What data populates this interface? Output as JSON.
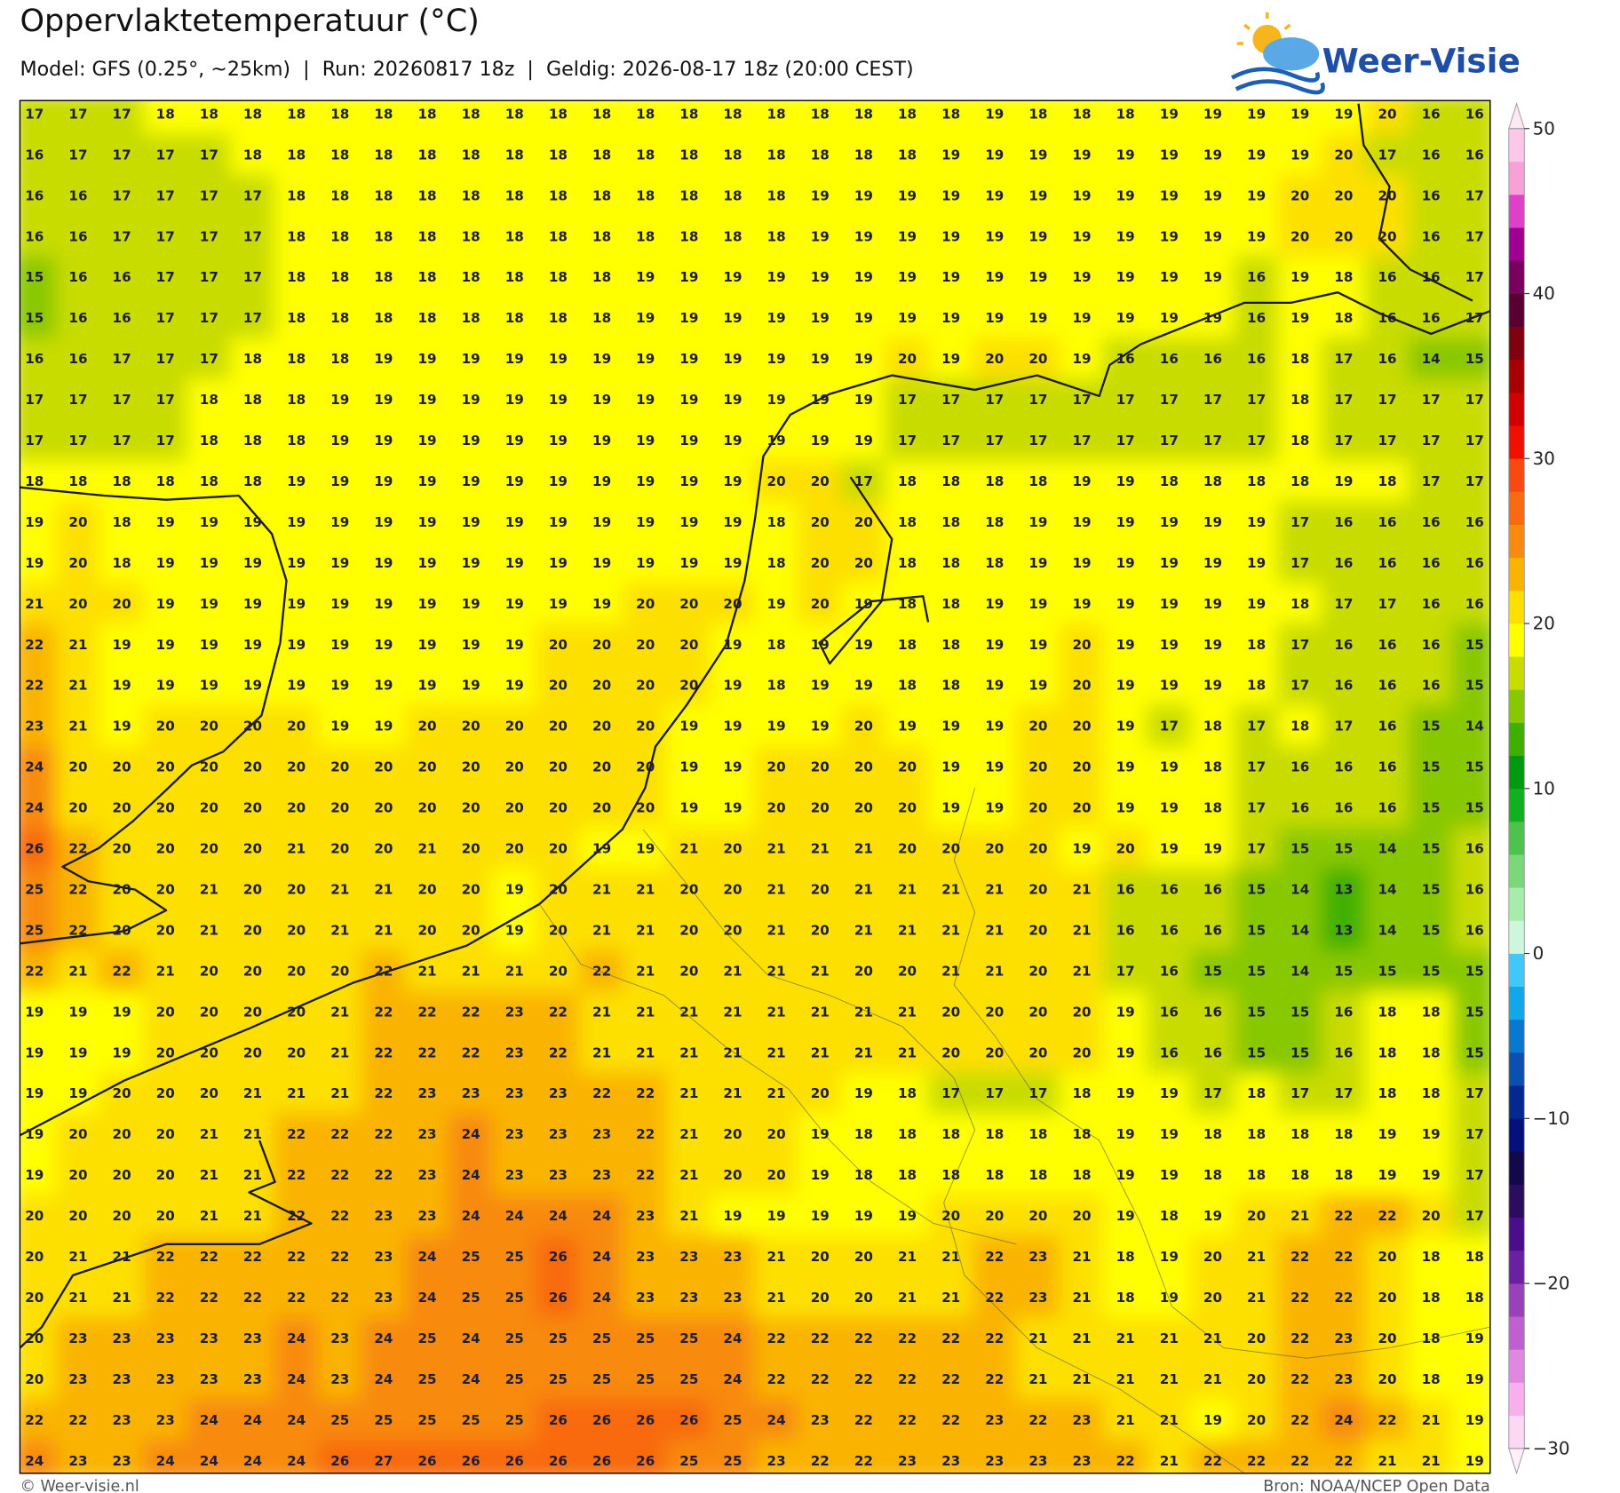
{
  "header": {
    "title": "Oppervlaktetemperatuur (°C)",
    "subtitle": "Model: GFS (0.25°, ~25km)  |  Run: 20260817 18z  |  Geldig: 2026-08-17 18z (20:00 CEST)"
  },
  "logo": "Weer-Visie",
  "grid": {
    "rows": [
      [
        17,
        17,
        17,
        18,
        18,
        18,
        18,
        18,
        18,
        18,
        18,
        18,
        18,
        18,
        18,
        18,
        18,
        18,
        18,
        18,
        18,
        18,
        19,
        18,
        18,
        18,
        19,
        19,
        19,
        19,
        19,
        20,
        16,
        16
      ],
      [
        16,
        17,
        17,
        17,
        17,
        18,
        18,
        18,
        18,
        18,
        18,
        18,
        18,
        18,
        18,
        18,
        18,
        18,
        18,
        18,
        18,
        19,
        19,
        19,
        19,
        19,
        19,
        19,
        19,
        19,
        20,
        17,
        16,
        16
      ],
      [
        16,
        16,
        17,
        17,
        17,
        17,
        18,
        18,
        18,
        18,
        18,
        18,
        18,
        18,
        18,
        18,
        18,
        18,
        19,
        19,
        19,
        19,
        19,
        19,
        19,
        19,
        19,
        19,
        19,
        20,
        20,
        20,
        16,
        17
      ],
      [
        16,
        16,
        17,
        17,
        17,
        17,
        18,
        18,
        18,
        18,
        18,
        18,
        18,
        18,
        18,
        18,
        18,
        18,
        19,
        19,
        19,
        19,
        19,
        19,
        19,
        19,
        19,
        19,
        19,
        20,
        20,
        20,
        16,
        17
      ],
      [
        15,
        16,
        16,
        17,
        17,
        17,
        18,
        18,
        18,
        18,
        18,
        18,
        18,
        18,
        19,
        19,
        19,
        19,
        19,
        19,
        19,
        19,
        19,
        19,
        19,
        19,
        19,
        19,
        16,
        19,
        18,
        16,
        16,
        17
      ],
      [
        15,
        16,
        16,
        17,
        17,
        17,
        18,
        18,
        18,
        18,
        18,
        18,
        18,
        18,
        19,
        19,
        19,
        19,
        19,
        19,
        19,
        19,
        19,
        19,
        19,
        19,
        19,
        19,
        16,
        19,
        18,
        16,
        16,
        17
      ],
      [
        16,
        16,
        17,
        17,
        17,
        18,
        18,
        18,
        19,
        19,
        19,
        19,
        19,
        19,
        19,
        19,
        19,
        19,
        19,
        19,
        20,
        19,
        20,
        20,
        19,
        16,
        16,
        16,
        16,
        18,
        17,
        16,
        14,
        15
      ],
      [
        17,
        17,
        17,
        17,
        18,
        18,
        18,
        19,
        19,
        19,
        19,
        19,
        19,
        19,
        19,
        19,
        19,
        19,
        19,
        19,
        17,
        17,
        17,
        17,
        17,
        17,
        17,
        17,
        17,
        18,
        17,
        17,
        17,
        17
      ],
      [
        17,
        17,
        17,
        17,
        18,
        18,
        18,
        19,
        19,
        19,
        19,
        19,
        19,
        19,
        19,
        19,
        19,
        19,
        19,
        19,
        17,
        17,
        17,
        17,
        17,
        17,
        17,
        17,
        17,
        18,
        17,
        17,
        17,
        17
      ],
      [
        18,
        18,
        18,
        18,
        18,
        18,
        19,
        19,
        19,
        19,
        19,
        19,
        19,
        19,
        19,
        19,
        19,
        20,
        20,
        17,
        18,
        18,
        18,
        18,
        19,
        19,
        18,
        18,
        18,
        18,
        19,
        18,
        17,
        17
      ],
      [
        19,
        20,
        18,
        19,
        19,
        19,
        19,
        19,
        19,
        19,
        19,
        19,
        19,
        19,
        19,
        19,
        19,
        18,
        20,
        20,
        18,
        18,
        18,
        19,
        19,
        19,
        19,
        19,
        19,
        17,
        16,
        16,
        16,
        16
      ],
      [
        19,
        20,
        18,
        19,
        19,
        19,
        19,
        19,
        19,
        19,
        19,
        19,
        19,
        19,
        19,
        19,
        19,
        18,
        20,
        20,
        18,
        18,
        18,
        19,
        19,
        19,
        19,
        19,
        19,
        17,
        16,
        16,
        16,
        16
      ],
      [
        21,
        20,
        20,
        19,
        19,
        19,
        19,
        19,
        19,
        19,
        19,
        19,
        19,
        19,
        20,
        20,
        20,
        19,
        20,
        19,
        18,
        18,
        19,
        19,
        19,
        19,
        19,
        19,
        19,
        18,
        17,
        17,
        16,
        16
      ],
      [
        22,
        21,
        19,
        19,
        19,
        19,
        19,
        19,
        19,
        19,
        19,
        19,
        20,
        20,
        20,
        20,
        19,
        18,
        19,
        19,
        18,
        18,
        19,
        19,
        20,
        19,
        19,
        19,
        18,
        17,
        16,
        16,
        16,
        15
      ],
      [
        22,
        21,
        19,
        19,
        19,
        19,
        19,
        19,
        19,
        19,
        19,
        19,
        20,
        20,
        20,
        20,
        19,
        18,
        19,
        19,
        18,
        18,
        19,
        19,
        20,
        19,
        19,
        19,
        18,
        17,
        16,
        16,
        16,
        15
      ],
      [
        23,
        21,
        19,
        20,
        20,
        20,
        20,
        19,
        19,
        20,
        20,
        20,
        20,
        20,
        20,
        19,
        19,
        19,
        19,
        20,
        19,
        19,
        19,
        20,
        20,
        19,
        17,
        18,
        17,
        18,
        17,
        16,
        15,
        14
      ],
      [
        24,
        20,
        20,
        20,
        20,
        20,
        20,
        20,
        20,
        20,
        20,
        20,
        20,
        20,
        20,
        19,
        19,
        20,
        20,
        20,
        20,
        19,
        19,
        20,
        20,
        19,
        19,
        18,
        17,
        16,
        16,
        16,
        15,
        15
      ],
      [
        24,
        20,
        20,
        20,
        20,
        20,
        20,
        20,
        20,
        20,
        20,
        20,
        20,
        20,
        20,
        19,
        19,
        20,
        20,
        20,
        20,
        19,
        19,
        20,
        20,
        19,
        19,
        18,
        17,
        16,
        16,
        16,
        15,
        15
      ],
      [
        26,
        22,
        20,
        20,
        20,
        20,
        21,
        20,
        20,
        21,
        20,
        20,
        20,
        19,
        19,
        21,
        20,
        21,
        21,
        21,
        20,
        20,
        20,
        20,
        19,
        20,
        19,
        19,
        17,
        15,
        15,
        14,
        15,
        16
      ],
      [
        25,
        22,
        20,
        20,
        21,
        20,
        20,
        21,
        21,
        20,
        20,
        19,
        20,
        21,
        21,
        20,
        20,
        21,
        20,
        21,
        21,
        21,
        21,
        20,
        21,
        16,
        16,
        16,
        15,
        14,
        13,
        14,
        15,
        16
      ],
      [
        25,
        22,
        20,
        20,
        21,
        20,
        20,
        21,
        21,
        20,
        20,
        19,
        20,
        21,
        21,
        20,
        20,
        21,
        20,
        21,
        21,
        21,
        21,
        20,
        21,
        16,
        16,
        16,
        15,
        14,
        13,
        14,
        15,
        16
      ],
      [
        22,
        21,
        22,
        21,
        20,
        20,
        20,
        20,
        22,
        21,
        21,
        21,
        20,
        22,
        21,
        20,
        21,
        21,
        21,
        20,
        20,
        21,
        21,
        20,
        21,
        17,
        16,
        15,
        15,
        14,
        15,
        15,
        15,
        15
      ],
      [
        19,
        19,
        19,
        20,
        20,
        20,
        20,
        21,
        22,
        22,
        22,
        23,
        22,
        21,
        21,
        21,
        21,
        21,
        21,
        21,
        21,
        20,
        20,
        20,
        20,
        19,
        16,
        16,
        15,
        15,
        16,
        18,
        18,
        15
      ],
      [
        19,
        19,
        19,
        20,
        20,
        20,
        20,
        21,
        22,
        22,
        22,
        23,
        22,
        21,
        21,
        21,
        21,
        21,
        21,
        21,
        21,
        20,
        20,
        20,
        20,
        19,
        16,
        16,
        15,
        15,
        16,
        18,
        18,
        15
      ],
      [
        19,
        19,
        20,
        20,
        20,
        21,
        21,
        21,
        22,
        23,
        23,
        23,
        23,
        22,
        22,
        21,
        21,
        21,
        20,
        19,
        18,
        17,
        17,
        17,
        18,
        19,
        19,
        17,
        18,
        17,
        17,
        18,
        18,
        17
      ],
      [
        19,
        20,
        20,
        20,
        21,
        21,
        22,
        22,
        22,
        23,
        24,
        23,
        23,
        23,
        22,
        21,
        20,
        20,
        19,
        18,
        18,
        18,
        18,
        18,
        18,
        19,
        19,
        18,
        18,
        18,
        18,
        19,
        19,
        17
      ],
      [
        19,
        20,
        20,
        20,
        21,
        21,
        22,
        22,
        22,
        23,
        24,
        23,
        23,
        23,
        22,
        21,
        20,
        20,
        19,
        18,
        18,
        18,
        18,
        18,
        18,
        19,
        19,
        18,
        18,
        18,
        18,
        19,
        19,
        17
      ],
      [
        20,
        20,
        20,
        20,
        21,
        21,
        22,
        22,
        23,
        23,
        24,
        24,
        24,
        24,
        23,
        21,
        19,
        19,
        19,
        19,
        19,
        20,
        20,
        20,
        20,
        19,
        18,
        19,
        20,
        21,
        22,
        22,
        20,
        17
      ],
      [
        20,
        21,
        21,
        22,
        22,
        22,
        22,
        22,
        23,
        24,
        25,
        25,
        26,
        24,
        23,
        23,
        23,
        21,
        20,
        20,
        21,
        21,
        22,
        23,
        21,
        18,
        19,
        20,
        21,
        22,
        22,
        20,
        18,
        18
      ],
      [
        20,
        21,
        21,
        22,
        22,
        22,
        22,
        22,
        23,
        24,
        25,
        25,
        26,
        24,
        23,
        23,
        23,
        21,
        20,
        20,
        21,
        21,
        22,
        23,
        21,
        18,
        19,
        20,
        21,
        22,
        22,
        20,
        18,
        18
      ],
      [
        20,
        23,
        23,
        23,
        23,
        23,
        24,
        23,
        24,
        25,
        24,
        25,
        25,
        25,
        25,
        25,
        24,
        22,
        22,
        22,
        22,
        22,
        22,
        21,
        21,
        21,
        21,
        21,
        20,
        22,
        23,
        20,
        18,
        19
      ],
      [
        20,
        23,
        23,
        23,
        23,
        23,
        24,
        23,
        24,
        25,
        24,
        25,
        25,
        25,
        25,
        25,
        24,
        22,
        22,
        22,
        22,
        22,
        22,
        21,
        21,
        21,
        21,
        21,
        20,
        22,
        23,
        20,
        18,
        19
      ],
      [
        22,
        22,
        23,
        23,
        24,
        24,
        24,
        25,
        25,
        25,
        25,
        25,
        26,
        26,
        26,
        26,
        25,
        24,
        23,
        22,
        22,
        22,
        23,
        22,
        23,
        21,
        21,
        19,
        20,
        22,
        24,
        22,
        21,
        19
      ],
      [
        24,
        23,
        23,
        24,
        24,
        24,
        24,
        26,
        27,
        26,
        26,
        26,
        26,
        26,
        26,
        25,
        25,
        23,
        22,
        22,
        23,
        23,
        23,
        23,
        23,
        22,
        21,
        22,
        22,
        22,
        22,
        21,
        21,
        19
      ]
    ]
  },
  "colorbar": {
    "lim": [
      -30,
      50
    ],
    "ticks": [
      {
        "value": -30,
        "label": "−30"
      },
      {
        "value": -20,
        "label": "−20"
      },
      {
        "value": -10,
        "label": "−10"
      },
      0,
      10,
      20,
      30,
      40,
      50
    ],
    "colors": [
      "#fcd8f4",
      "#f8b0ec",
      "#e088e0",
      "#c060d0",
      "#9a40b8",
      "#6a20a0",
      "#4a0e8a",
      "#2c0c60",
      "#14084c",
      "#06107a",
      "#032890",
      "#0a50b0",
      "#0878d0",
      "#10a8e8",
      "#40c8f8",
      "#ccf7dc",
      "#a6ecaa",
      "#7ad878",
      "#4cc34c",
      "#10b020",
      "#009a10",
      "#40b000",
      "#88c800",
      "#c8dc00",
      "#ffff00",
      "#fde000",
      "#fab400",
      "#f88a10",
      "#f86a10",
      "#f84a10",
      "#f01000",
      "#d00000",
      "#a80000",
      "#800010",
      "#5a0030",
      "#7a0060",
      "#a00090",
      "#e040c8",
      "#f8a0d8",
      "#fcc8e8"
    ],
    "under": "#fef0fa",
    "over": "#fde8f4"
  },
  "footer": {
    "credit": "© Weer-visie.nl",
    "source": "Bron: NOAA/NCEP Open Data"
  }
}
